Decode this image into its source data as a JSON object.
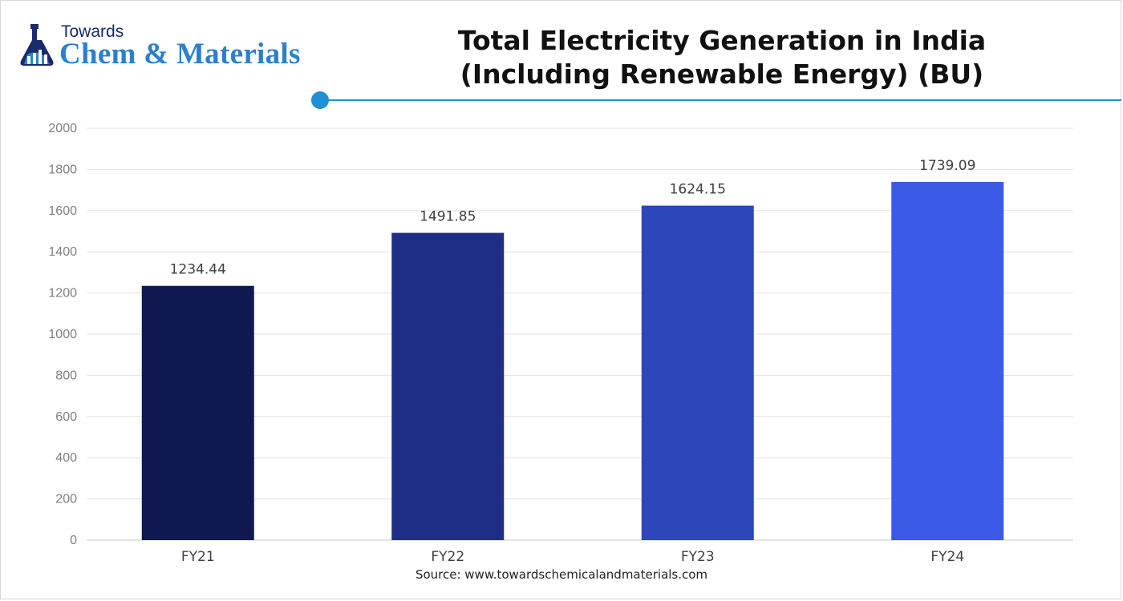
{
  "brand": {
    "towards": "Towards",
    "name": "Chem & Materials"
  },
  "colors": {
    "accent": "#1f8fd6",
    "bars": [
      "#0f1850",
      "#1e2d85",
      "#2d47bb",
      "#3b5be6"
    ]
  },
  "chart_data": {
    "type": "bar",
    "title": "Total Electricity Generation in India",
    "subtitle": "(Including Renewable Energy) (BU)",
    "categories": [
      "FY21",
      "FY22",
      "FY23",
      "FY24"
    ],
    "values": [
      1234.44,
      1491.85,
      1624.15,
      1739.09
    ],
    "value_labels": [
      "1234.44",
      "1491.85",
      "1624.15",
      "1739.09"
    ],
    "xlabel": "",
    "ylabel": "",
    "ylim": [
      0,
      2000
    ],
    "yticks": [
      0,
      200,
      400,
      600,
      800,
      1000,
      1200,
      1400,
      1600,
      1800,
      2000
    ],
    "grid": true,
    "legend": "none"
  },
  "source": "Source: www.towardschemicalandmaterials.com"
}
